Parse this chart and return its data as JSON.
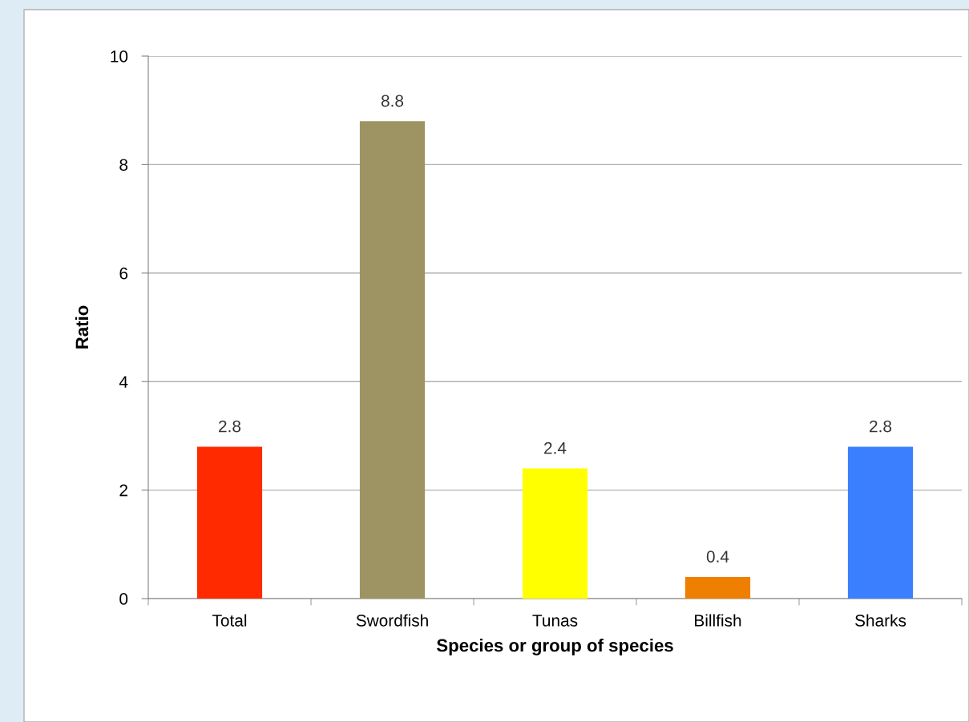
{
  "chart_data": {
    "type": "bar",
    "xlabel": "Species or group of species",
    "ylabel": "Ratio",
    "categories": [
      "Total",
      "Swordfish",
      "Tunas",
      "Billfish",
      "Sharks"
    ],
    "values": [
      2.8,
      8.8,
      2.4,
      0.4,
      2.8
    ],
    "colors": [
      "#ff2a00",
      "#9e9463",
      "#ffff00",
      "#ee7f00",
      "#3b7fff"
    ],
    "ylim": [
      0,
      10
    ],
    "yticks": [
      0,
      2,
      4,
      6,
      8,
      10
    ],
    "grid": "y",
    "data_labels": true
  }
}
